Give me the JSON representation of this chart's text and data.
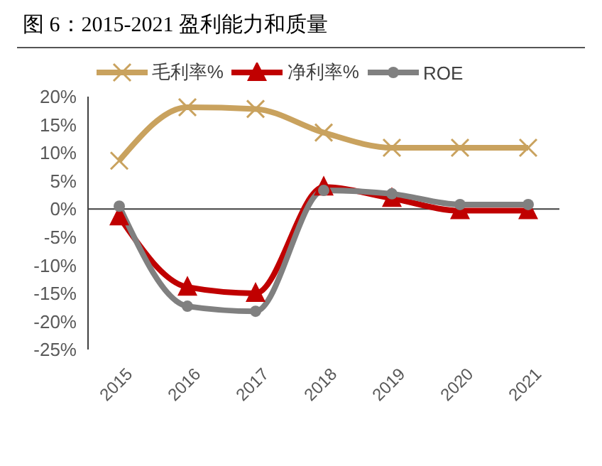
{
  "chart_data": {
    "type": "line",
    "title": "图 6：2015-2021 盈利能力和质量",
    "categories": [
      "2015",
      "2016",
      "2017",
      "2018",
      "2019",
      "2020",
      "2021"
    ],
    "series": [
      {
        "name": "毛利率%",
        "color": "#c9a25e",
        "marker": "cross",
        "values": [
          8.6,
          18.1,
          17.8,
          13.6,
          10.9,
          10.9,
          10.9
        ]
      },
      {
        "name": "净利率%",
        "color": "#c00000",
        "marker": "triangle",
        "values": [
          -1.4,
          -13.9,
          -15,
          3.9,
          1.9,
          -0.3,
          -0.3
        ]
      },
      {
        "name": "ROE",
        "color": "#808080",
        "marker": "circle",
        "values": [
          0.5,
          -17.3,
          -18.2,
          3.3,
          2.7,
          0.8,
          0.8
        ]
      }
    ],
    "ylim": [
      -25,
      20
    ],
    "yticks": [
      {
        "value": -25,
        "label": "-25%"
      },
      {
        "value": -20,
        "label": "-20%"
      },
      {
        "value": -15,
        "label": "-15%"
      },
      {
        "value": -10,
        "label": "-10%"
      },
      {
        "value": -5,
        "label": "-5%"
      },
      {
        "value": 0,
        "label": "0%"
      },
      {
        "value": 5,
        "label": "5%"
      },
      {
        "value": 10,
        "label": "10%"
      },
      {
        "value": 15,
        "label": "15%"
      },
      {
        "value": 20,
        "label": "20%"
      }
    ],
    "legend": "top"
  }
}
